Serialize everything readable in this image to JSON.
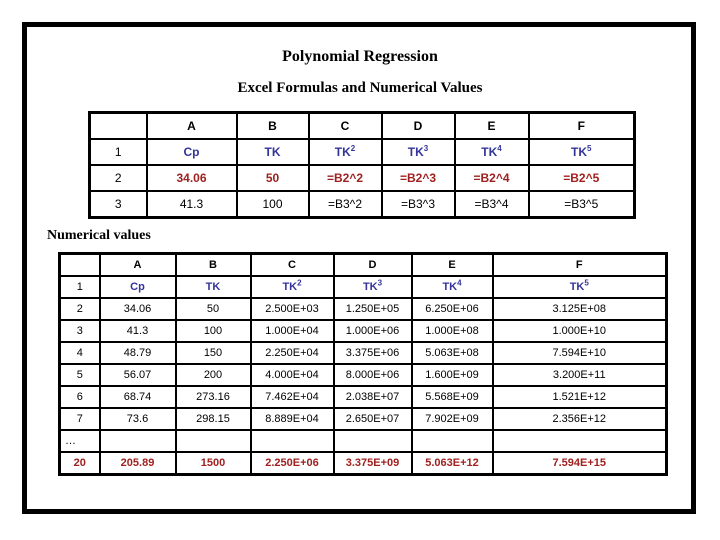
{
  "slide": {
    "title": "Polynomial Regression",
    "subtitle": "Excel Formulas and Numerical Values",
    "section_label": "Numerical values"
  },
  "colors": {
    "background": "#FFFFFF",
    "border": "#000000",
    "header_blue": "#333399",
    "accent_red": "#A02020"
  },
  "formula_table": {
    "columns": [
      "",
      "A",
      "B",
      "C",
      "D",
      "E",
      "F"
    ],
    "rows": [
      {
        "num": "1",
        "style": "blue",
        "num_style": "plain",
        "cells": [
          {
            "t": "Cp"
          },
          {
            "t": "TK"
          },
          {
            "t": "TK",
            "sup": "2"
          },
          {
            "t": "TK",
            "sup": "3"
          },
          {
            "t": "TK",
            "sup": "4"
          },
          {
            "t": "TK",
            "sup": "5"
          }
        ]
      },
      {
        "num": "2",
        "style": "red",
        "num_style": "plain",
        "cells": [
          "34.06",
          "50",
          "=B2^2",
          "=B2^3",
          "=B2^4",
          "=B2^5"
        ]
      },
      {
        "num": "3",
        "style": "plain",
        "num_style": "plain",
        "cells": [
          "41.3",
          "100",
          "=B3^2",
          "=B3^3",
          "=B3^4",
          "=B3^5"
        ]
      }
    ]
  },
  "numeric_table": {
    "columns": [
      "",
      "A",
      "B",
      "C",
      "D",
      "E",
      "F"
    ],
    "rows": [
      {
        "num": "1",
        "style": "blue",
        "num_style": "plain",
        "cells": [
          {
            "t": "Cp"
          },
          {
            "t": "TK"
          },
          {
            "t": "TK",
            "sup": "2"
          },
          {
            "t": "TK",
            "sup": "3"
          },
          {
            "t": "TK",
            "sup": "4"
          },
          {
            "t": "TK",
            "sup": "5"
          }
        ]
      },
      {
        "num": "2",
        "style": "plain",
        "num_style": "plain",
        "cells": [
          "34.06",
          "50",
          "2.500E+03",
          "1.250E+05",
          "6.250E+06",
          "3.125E+08"
        ]
      },
      {
        "num": "3",
        "style": "plain",
        "num_style": "plain",
        "cells": [
          "41.3",
          "100",
          "1.000E+04",
          "1.000E+06",
          "1.000E+08",
          "1.000E+10"
        ]
      },
      {
        "num": "4",
        "style": "plain",
        "num_style": "plain",
        "cells": [
          "48.79",
          "150",
          "2.250E+04",
          "3.375E+06",
          "5.063E+08",
          "7.594E+10"
        ]
      },
      {
        "num": "5",
        "style": "plain",
        "num_style": "plain",
        "cells": [
          "56.07",
          "200",
          "4.000E+04",
          "8.000E+06",
          "1.600E+09",
          "3.200E+11"
        ]
      },
      {
        "num": "6",
        "style": "plain",
        "num_style": "plain",
        "cells": [
          "68.74",
          "273.16",
          "7.462E+04",
          "2.038E+07",
          "5.568E+09",
          "1.521E+12"
        ]
      },
      {
        "num": "7",
        "style": "plain",
        "num_style": "plain",
        "cells": [
          "73.6",
          "298.15",
          "8.889E+04",
          "2.650E+07",
          "7.902E+09",
          "2.356E+12"
        ]
      },
      {
        "num": "…",
        "style": "plain",
        "num_style": "dots",
        "cells": [
          "",
          "",
          "",
          "",
          "",
          ""
        ]
      },
      {
        "num": "20",
        "style": "red",
        "num_style": "red",
        "cells": [
          "205.89",
          "1500",
          "2.250E+06",
          "3.375E+09",
          "5.063E+12",
          "7.594E+15"
        ]
      }
    ]
  }
}
